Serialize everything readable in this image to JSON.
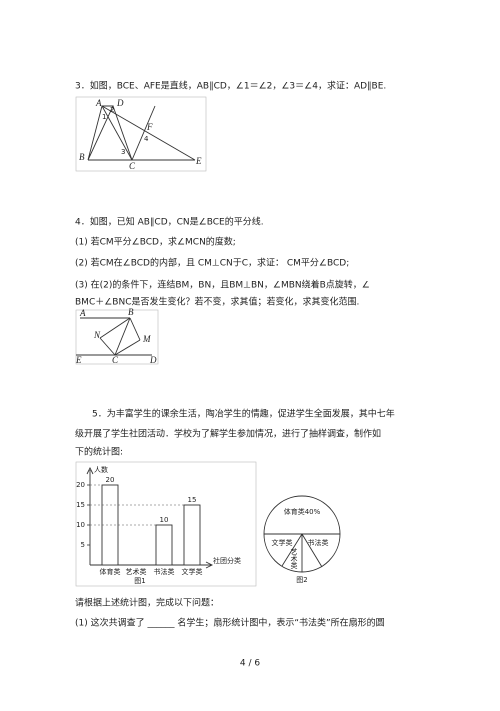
{
  "q3": {
    "text": "3．如图，BCE、AFE是直线，AB∥CD，∠1＝∠2，∠3＝∠4，求证：AD∥BE.",
    "figure": {
      "labels": [
        "A",
        "D",
        "2",
        "1",
        "F",
        "4",
        "3",
        "B",
        "C",
        "E"
      ]
    }
  },
  "q4": {
    "lines": [
      "4．如图，已知 AB∥CD，CN是∠BCE的平分线.",
      "(1) 若CM平分∠BCD，求∠MCN的度数;",
      "(2) 若CM在∠BCD的内部，且 CM⊥CN于C，求证： CM平分∠BCD;",
      "(3) 在(2)的条件下，连结BM，BN，且BM⊥BN，∠MBN绕着B点旋转，∠",
      "BMC＋∠BNC是否发生变化？若不变，求其值；若变化，求其变化范围."
    ],
    "figure": {
      "labels": [
        "A",
        "B",
        "N",
        "M",
        "E",
        "C",
        "D"
      ]
    }
  },
  "q5": {
    "lines": [
      "5．为丰富学生的课余生活，陶冶学生的情趣，促进学生全面发展，其中七年",
      "级开展了学生社团活动．学校为了解学生参加情况，进行了抽样调查，制作如",
      "下的统计图:"
    ],
    "bar_chart": {
      "ylabel": "人数",
      "xlabel": "社团分类",
      "caption": "图1",
      "categories": [
        "体育类",
        "艺术类",
        "书法类",
        "文学类"
      ],
      "values": [
        20,
        null,
        10,
        15
      ],
      "ylim": [
        0,
        20
      ],
      "yticks": [
        5,
        10,
        15,
        20
      ]
    },
    "pie_chart": {
      "labels": [
        "体育类40%",
        "文学类",
        "书法类",
        "艺术类"
      ],
      "caption": "图2"
    },
    "questions": [
      "请根据上述统计图，完成以下问题：",
      "(1) 这次共调查了 ______ 名学生；扇形统计图中，表示“书法类”所在扇形的圆"
    ]
  },
  "footer": {
    "page": "4 / 6"
  }
}
